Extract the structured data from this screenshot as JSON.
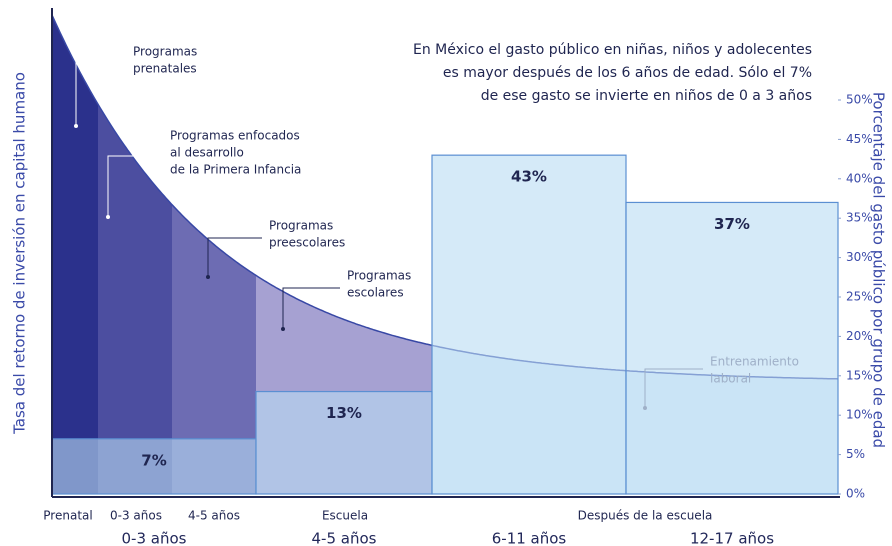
{
  "chart_data": {
    "type": "bar",
    "annotation": [
      "En México el gasto público en niñas, niños y adolecentes",
      "es mayor después de los 6 años de edad. Sólo el 7%",
      "de ese gasto se invierte en niños de 0 a 3 años"
    ],
    "left_label": "Tasa del retorno de inversión en capital humano",
    "ylabel": "Porcentaje del gasto público por grupo de edad",
    "categories": [
      "0-3 años",
      "4-5 años",
      "6-11 años",
      "12-17 años"
    ],
    "values": [
      7,
      13,
      43,
      37
    ],
    "value_labels": [
      "7%",
      "13%",
      "43%",
      "37%"
    ],
    "color": "#b9dcf4",
    "ylim": [
      0,
      50
    ],
    "yticks": [
      {
        "value": 0,
        "label": "0%"
      },
      {
        "value": 5,
        "label": "5%"
      },
      {
        "value": 10,
        "label": "10%"
      },
      {
        "value": 15,
        "label": "15%"
      },
      {
        "value": 20,
        "label": "20%"
      },
      {
        "value": 25,
        "label": "25%"
      },
      {
        "value": 30,
        "label": "30%"
      },
      {
        "value": 35,
        "label": "35%"
      },
      {
        "value": 40,
        "label": "40%"
      },
      {
        "value": 45,
        "label": "45%"
      },
      {
        "value": 50,
        "label": "50%"
      }
    ],
    "stages": [
      "Prenatal",
      "0-3 años",
      "4-5 años",
      "Escuela",
      "Después de la escuela"
    ],
    "programs": [
      {
        "lines": [
          "Programas",
          "prenatales"
        ]
      },
      {
        "lines": [
          "Programas enfocados",
          "al desarrollo",
          "de la Primera Infancia"
        ]
      },
      {
        "lines": [
          "Programas",
          "preescolares"
        ]
      },
      {
        "lines": [
          "Programas",
          "escolares"
        ]
      },
      {
        "lines": [
          "Entrenamiento",
          "laboral"
        ]
      }
    ]
  }
}
